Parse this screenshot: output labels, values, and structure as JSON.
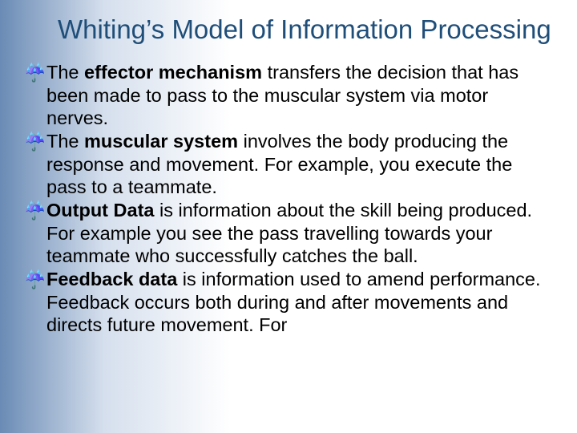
{
  "title_color": "#1f4e79",
  "body_color": "#000000",
  "gradient_start": "#6a8bb5",
  "gradient_mid": "#d5dfed",
  "gradient_end": "#ffffff",
  "bullet_glyph": "☔",
  "title": "Whiting’s Model of Information Processing",
  "bullets": [
    {
      "pre": "The ",
      "bold": "effector mechanism",
      "post": " transfers the decision that has been made to pass to the muscular system via motor nerves."
    },
    {
      "pre": "The ",
      "bold": "muscular system",
      "post": " involves the body producing the response and movement. For example, you execute the pass to a teammate."
    },
    {
      "pre": "",
      "bold": "Output Data",
      "post": " is information about the skill being produced. For example you see the pass travelling towards your teammate who successfully catches the ball."
    },
    {
      "pre": "",
      "bold": "Feedback data",
      "post": " is information used to amend performance. Feedback occurs both during and after movements and directs future movement. For"
    }
  ]
}
